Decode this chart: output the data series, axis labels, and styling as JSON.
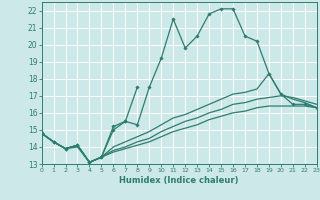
{
  "xlabel": "Humidex (Indice chaleur)",
  "bg_color": "#cce8e8",
  "grid_color": "#ffffff",
  "line_color": "#2d7d6e",
  "xlim": [
    0,
    23
  ],
  "ylim": [
    13,
    22.5
  ],
  "xticks": [
    0,
    1,
    2,
    3,
    4,
    5,
    6,
    7,
    8,
    9,
    10,
    11,
    12,
    13,
    14,
    15,
    16,
    17,
    18,
    19,
    20,
    21,
    22,
    23
  ],
  "yticks": [
    13,
    14,
    15,
    16,
    17,
    18,
    19,
    20,
    21,
    22
  ],
  "curve_main_x": [
    0,
    1,
    2,
    3,
    4,
    5,
    6,
    7,
    8,
    9,
    10,
    11,
    12,
    13,
    14,
    15,
    16,
    17,
    18,
    19,
    20,
    21,
    22,
    23
  ],
  "curve_main_y": [
    14.8,
    14.3,
    13.9,
    14.1,
    13.1,
    13.4,
    15.2,
    15.5,
    15.3,
    17.5,
    19.2,
    21.5,
    19.8,
    20.5,
    21.8,
    22.1,
    22.1,
    20.5,
    20.2,
    18.3,
    17.1,
    16.5,
    16.5,
    16.3
  ],
  "curve_spike_x": [
    0,
    1,
    2,
    3,
    4,
    5,
    6,
    7,
    8
  ],
  "curve_spike_y": [
    14.8,
    14.3,
    13.9,
    14.1,
    13.1,
    13.4,
    15.0,
    15.5,
    17.5
  ],
  "curve_flat1_x": [
    0,
    1,
    2,
    3,
    4,
    5,
    6,
    7,
    8,
    9,
    10,
    11,
    12,
    13,
    14,
    15,
    16,
    17,
    18,
    19,
    20,
    21,
    22,
    23
  ],
  "curve_flat1_y": [
    14.8,
    14.3,
    13.9,
    14.0,
    13.1,
    13.4,
    13.7,
    13.9,
    14.1,
    14.3,
    14.6,
    14.9,
    15.1,
    15.3,
    15.6,
    15.8,
    16.0,
    16.1,
    16.3,
    16.4,
    16.4,
    16.4,
    16.4,
    16.3
  ],
  "curve_flat2_x": [
    0,
    1,
    2,
    3,
    4,
    5,
    6,
    7,
    8,
    9,
    10,
    11,
    12,
    13,
    14,
    15,
    16,
    17,
    18,
    19,
    20,
    21,
    22,
    23
  ],
  "curve_flat2_y": [
    14.8,
    14.3,
    13.9,
    14.1,
    13.1,
    13.4,
    13.8,
    14.0,
    14.3,
    14.5,
    14.9,
    15.2,
    15.5,
    15.7,
    16.0,
    16.2,
    16.5,
    16.6,
    16.8,
    16.9,
    17.0,
    16.9,
    16.7,
    16.5
  ],
  "curve_flat3_x": [
    0,
    1,
    2,
    3,
    4,
    5,
    6,
    7,
    8,
    9,
    10,
    11,
    12,
    13,
    14,
    15,
    16,
    17,
    18,
    19,
    20,
    21,
    22,
    23
  ],
  "curve_flat3_y": [
    14.8,
    14.3,
    13.9,
    14.1,
    13.1,
    13.4,
    14.0,
    14.3,
    14.6,
    14.9,
    15.3,
    15.7,
    15.9,
    16.2,
    16.5,
    16.8,
    17.1,
    17.2,
    17.4,
    18.3,
    17.1,
    16.8,
    16.6,
    16.3
  ]
}
